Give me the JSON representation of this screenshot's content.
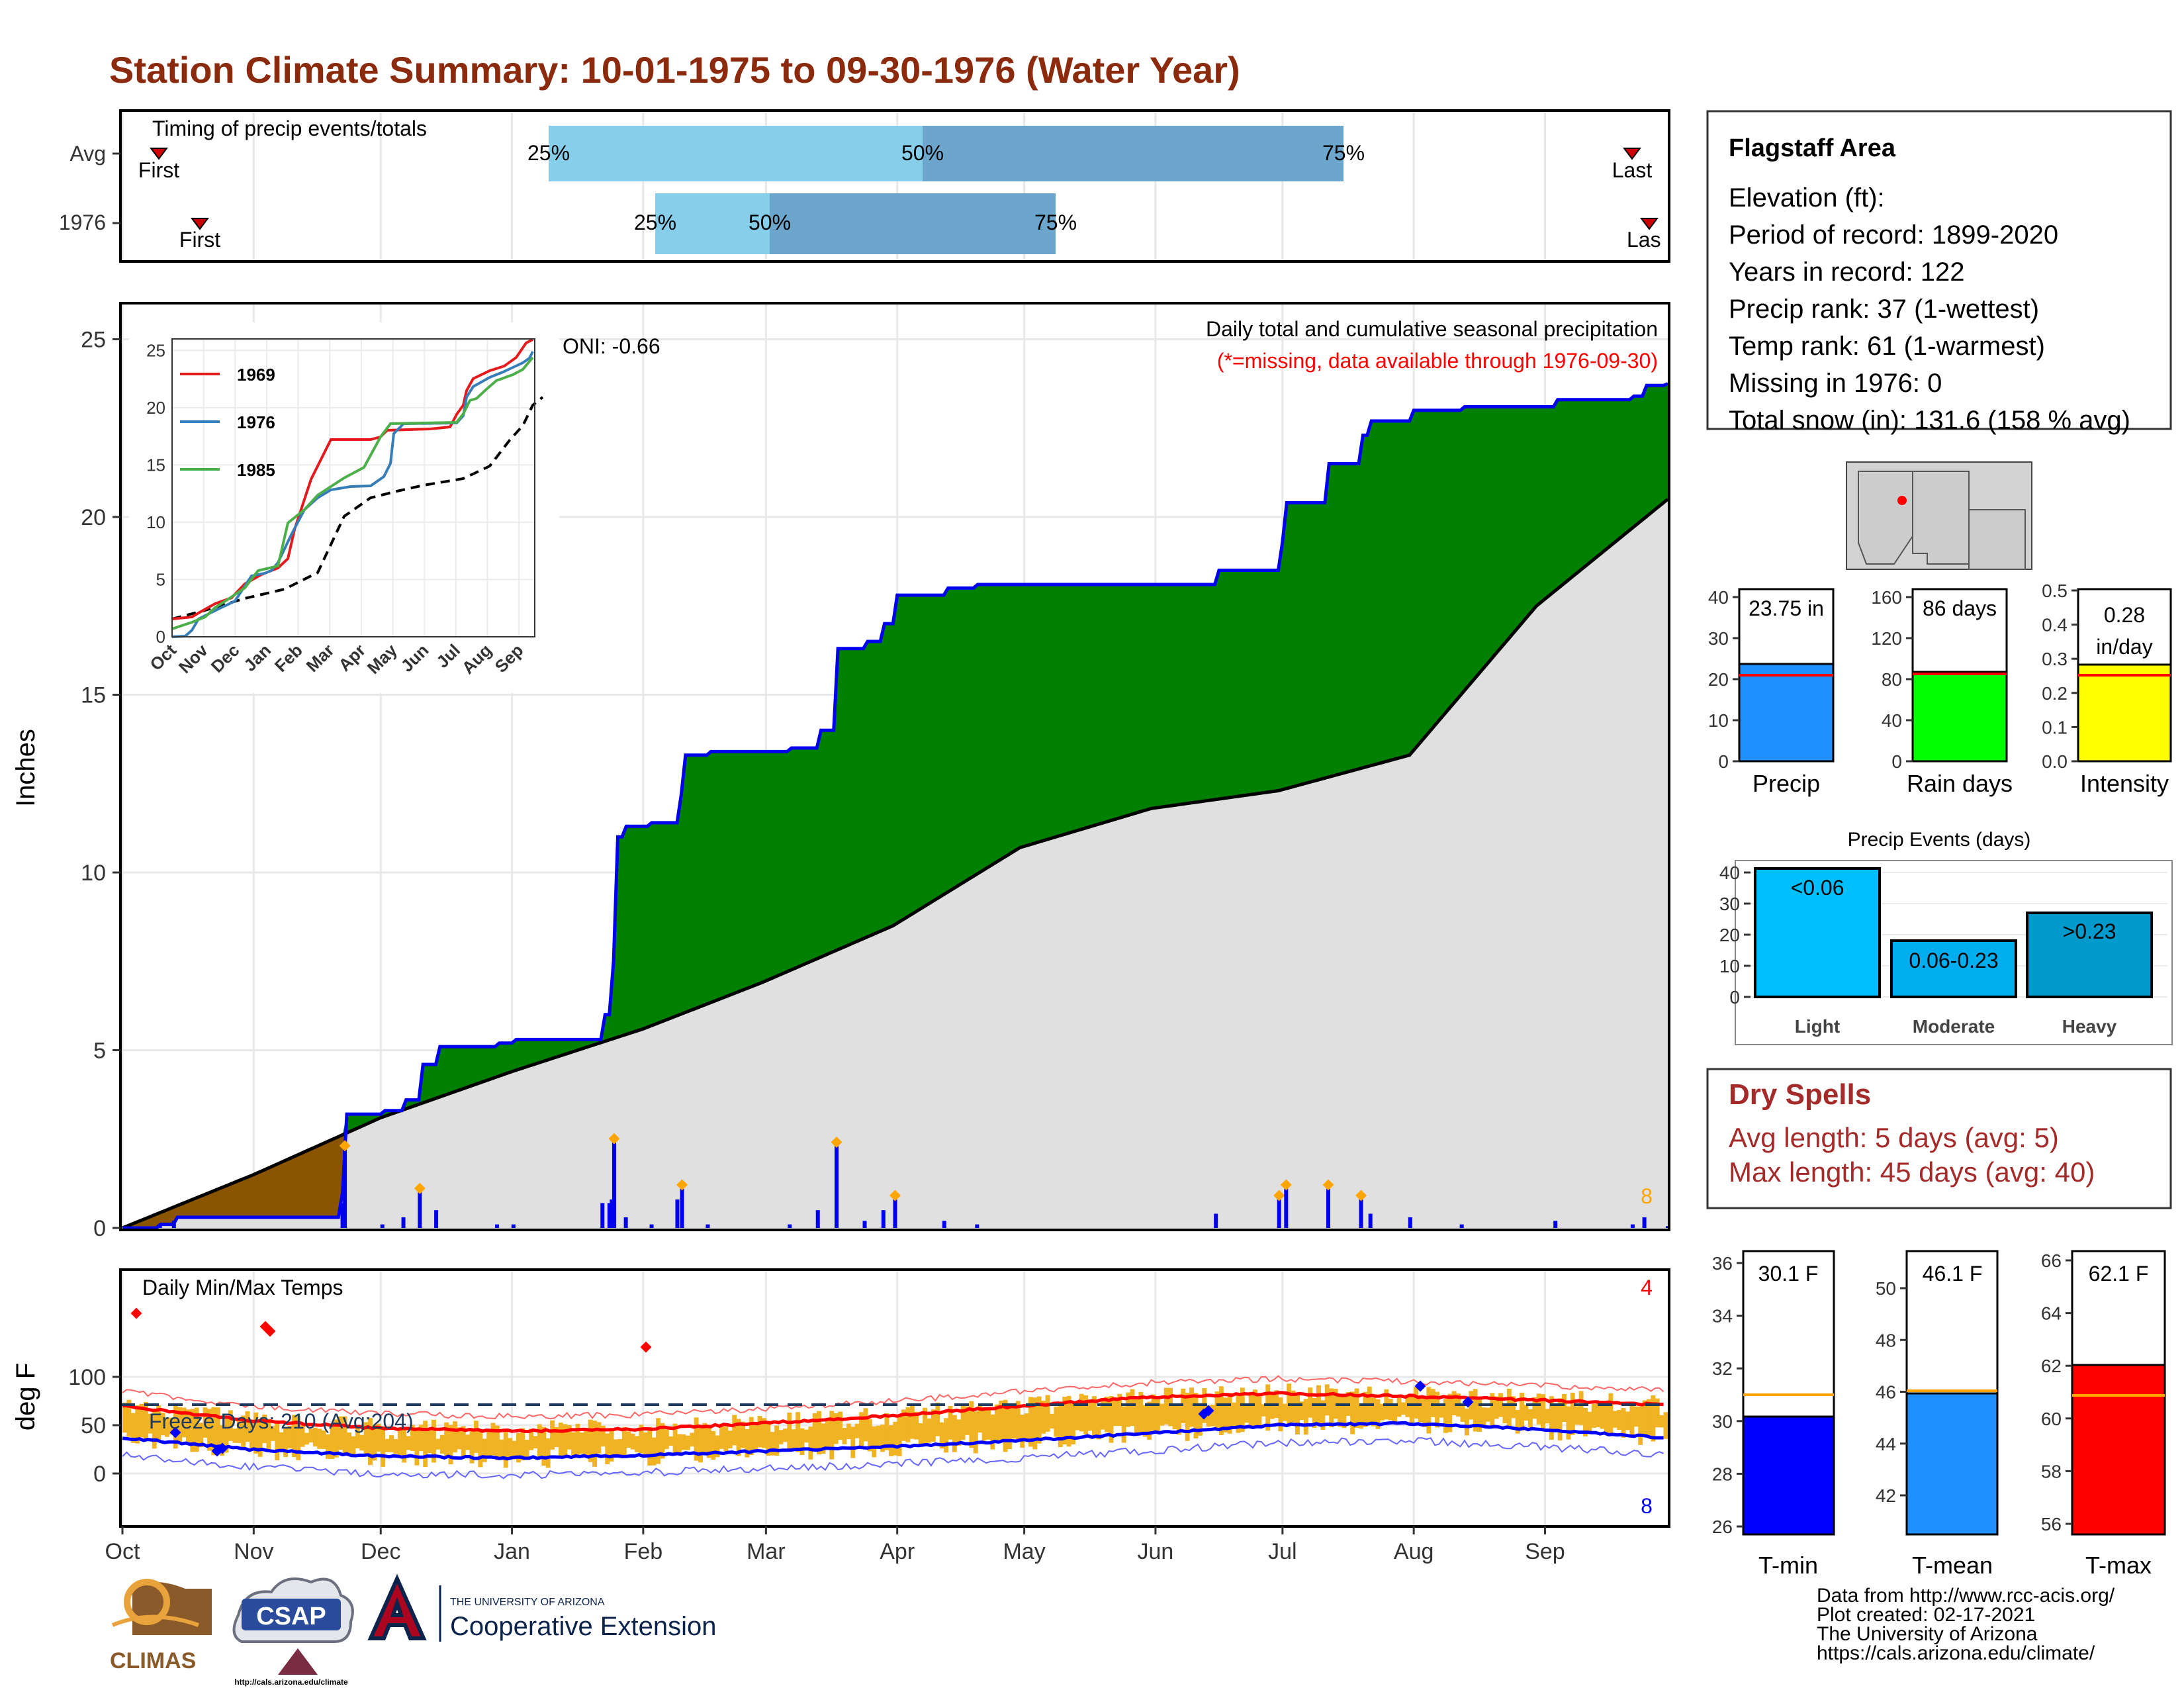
{
  "title": "Station Climate Summary: 10-01-1975 to 09-30-1976 (Water Year)",
  "colors": {
    "title": "#8B2A0C",
    "green": "#008000",
    "brown": "#8B5500",
    "avg_fill": "#E0E0E0",
    "cum_line": "#0000EE",
    "light_blue": "#87CEEB",
    "steel_blue": "#6CA6CD",
    "temp_bar": "#F0B323",
    "tmax": "#FF0000",
    "tmin": "#0000FF",
    "dry": "#A52A2A",
    "inset_1969": "#E41A1C",
    "inset_1976": "#377EB8",
    "inset_1985": "#4DAF4A"
  },
  "timing": {
    "title": "Timing of precip events/totals",
    "rows": [
      {
        "label": "Avg",
        "first_label": "First",
        "last_label": "Last",
        "q25": "25%",
        "q50": "50%",
        "q75": "75%"
      },
      {
        "label": "1976",
        "first_label": "First",
        "last_label": "Las",
        "q25": "25%",
        "q50": "50%",
        "q75": "75%"
      }
    ]
  },
  "precip_panel": {
    "ylabel": "Inches",
    "subtitle": "Daily total and cumulative seasonal precipitation",
    "missing_note": "(*=missing, data available through 1976-09-30)",
    "oni": "ONI: -0.66",
    "corner_count": "8",
    "yticks": [
      "0",
      "5",
      "10",
      "15",
      "20",
      "25"
    ]
  },
  "inset": {
    "yticks": [
      "0",
      "5",
      "10",
      "15",
      "20",
      "25"
    ],
    "xticks": [
      "Oct",
      "Nov",
      "Dec",
      "Jan",
      "Feb",
      "Mar",
      "Apr",
      "May",
      "Jun",
      "Jul",
      "Aug",
      "Sep"
    ],
    "legend": [
      "1969",
      "1976",
      "1985"
    ]
  },
  "temp_panel": {
    "ylabel": "deg F",
    "title": "Daily Min/Max Temps",
    "freeze": "Freeze Days: 210 (Avg:204)",
    "count_hi": "4",
    "count_lo": "8",
    "yticks": [
      "0",
      "50",
      "100"
    ]
  },
  "months": [
    "Oct",
    "Nov",
    "Dec",
    "Jan",
    "Feb",
    "Mar",
    "Apr",
    "May",
    "Jun",
    "Jul",
    "Aug",
    "Sep"
  ],
  "info": {
    "station": "Flagstaff Area",
    "lines": [
      "Elevation (ft):",
      "Period of record: 1899-2020",
      "Years in record: 122",
      "Precip rank: 37 (1-wettest)",
      "Temp rank: 61 (1-warmest)",
      "Missing in 1976: 0",
      "Total snow (in): 131.6 (158 % avg)"
    ]
  },
  "mini_bars": {
    "precip": {
      "label": "Precip",
      "value_text": "23.75 in",
      "yticks": [
        "0",
        "10",
        "20",
        "30",
        "40"
      ]
    },
    "rain": {
      "label": "Rain days",
      "value_text": "86 days",
      "yticks": [
        "0",
        "40",
        "80",
        "120",
        "160"
      ]
    },
    "intensity": {
      "label": "Intensity",
      "value_text_1": "0.28",
      "value_text_2": "in/day",
      "yticks": [
        "0.0",
        "0.1",
        "0.2",
        "0.3",
        "0.4",
        "0.5"
      ]
    }
  },
  "events": {
    "title": "Precip Events (days)",
    "yticks": [
      "0",
      "10",
      "20",
      "30",
      "40"
    ],
    "bars": [
      {
        "category": "Light",
        "label": "<0.06"
      },
      {
        "category": "Moderate",
        "label": "0.06-0.23"
      },
      {
        "category": "Heavy",
        "label": ">0.23"
      }
    ]
  },
  "dry_spells": {
    "title": "Dry Spells",
    "avg": "Avg length: 5 days (avg: 5)",
    "max": "Max length: 45 days (avg: 40)"
  },
  "temp_bars": {
    "tmin": {
      "label": "T-min",
      "value_text": "30.1 F",
      "yticks": [
        "26",
        "28",
        "30",
        "32",
        "34",
        "36"
      ]
    },
    "tmean": {
      "label": "T-mean",
      "value_text": "46.1 F",
      "yticks": [
        "42",
        "44",
        "46",
        "48",
        "50"
      ]
    },
    "tmax": {
      "label": "T-max",
      "value_text": "62.1 F",
      "yticks": [
        "56",
        "58",
        "60",
        "62",
        "64",
        "66"
      ]
    }
  },
  "footer": {
    "lines": [
      "Data from http://www.rcc-acis.org/",
      "Plot created: 02-17-2021",
      "The University of Arizona",
      "https://cals.arizona.edu/climate/"
    ],
    "logos": {
      "climas": "CLIMAS",
      "csap": "CSAP",
      "csap_url": "http://cals.arizona.edu/climate",
      "ua_small": "THE UNIVERSITY OF ARIZONA",
      "ua_big": "Cooperative Extension"
    }
  },
  "chart_data": [
    {
      "type": "bar",
      "title": "Timing of precip events/totals",
      "categories": [
        "Avg",
        "1976"
      ],
      "series": [
        {
          "name": "25%",
          "values": [
            "01-11",
            "02-01"
          ]
        },
        {
          "name": "50%",
          "values": [
            "03-11",
            "02-28"
          ]
        },
        {
          "name": "75%",
          "values": [
            "06-29",
            "04-07"
          ]
        }
      ],
      "markers": {
        "First": [
          "10-09",
          "10-20"
        ],
        "Last": [
          "09-24",
          "09-29"
        ]
      }
    },
    {
      "type": "area",
      "title": "Daily total and cumulative seasonal precipitation",
      "ylabel": "Inches",
      "ylim": [
        0,
        26
      ],
      "total_in": 23.75,
      "cumulative_1976": [
        [
          0,
          0
        ],
        [
          16,
          0.1
        ],
        [
          22,
          0.3
        ],
        [
          60,
          0.3
        ],
        [
          92,
          0.3
        ],
        [
          94,
          1.0
        ],
        [
          95,
          3.2
        ],
        [
          100,
          3.2
        ],
        [
          111,
          3.3
        ],
        [
          120,
          3.6
        ],
        [
          127,
          4.6
        ],
        [
          134,
          5.1
        ],
        [
          160,
          5.2
        ],
        [
          167,
          5.3
        ],
        [
          180,
          5.3
        ],
        [
          205,
          6.0
        ],
        [
          208,
          6.7
        ],
        [
          209,
          7.5
        ],
        [
          210,
          11.0
        ],
        [
          215,
          11.3
        ],
        [
          226,
          11.4
        ],
        [
          237,
          12.2
        ],
        [
          239,
          13.3
        ],
        [
          250,
          13.4
        ],
        [
          285,
          13.5
        ],
        [
          297,
          14.0
        ],
        [
          305,
          16.3
        ],
        [
          317,
          16.5
        ],
        [
          325,
          17.0
        ],
        [
          330,
          17.8
        ],
        [
          351,
          18.0
        ],
        [
          365,
          18.1
        ],
        [
          420,
          18.1
        ],
        [
          467,
          18.5
        ],
        [
          494,
          19.3
        ],
        [
          497,
          20.4
        ],
        [
          515,
          21.5
        ],
        [
          529,
          22.3
        ],
        [
          533,
          22.7
        ],
        [
          550,
          23.0
        ],
        [
          572,
          23.1
        ],
        [
          612,
          23.3
        ],
        [
          640,
          23.3
        ],
        [
          645,
          23.4
        ],
        [
          650,
          23.7
        ],
        [
          660,
          23.75
        ]
      ],
      "average_cumulative": [
        [
          0,
          0
        ],
        [
          31,
          1.5
        ],
        [
          61,
          3.1
        ],
        [
          92,
          4.4
        ],
        [
          123,
          5.6
        ],
        [
          151,
          6.9
        ],
        [
          182,
          8.5
        ],
        [
          212,
          10.7
        ],
        [
          243,
          11.8
        ],
        [
          273,
          12.3
        ],
        [
          304,
          13.3
        ],
        [
          334,
          17.5
        ],
        [
          365,
          20.5
        ]
      ]
    },
    {
      "type": "line",
      "title": "Cumulative precipitation comparison",
      "series": [
        {
          "name": "1969",
          "end_value": 25.0
        },
        {
          "name": "1976",
          "end_value": 23.75
        },
        {
          "name": "1985",
          "end_value": 24.0
        }
      ],
      "ylim": [
        0,
        25
      ]
    },
    {
      "type": "bar",
      "title": "Daily Min/Max Temps",
      "ylabel": "deg F",
      "ylim": [
        -40,
        100
      ],
      "avg_tmax": [
        [
          0,
          70
        ],
        [
          30,
          55
        ],
        [
          60,
          47
        ],
        [
          92,
          44
        ],
        [
          123,
          46
        ],
        [
          151,
          52
        ],
        [
          182,
          60
        ],
        [
          212,
          70
        ],
        [
          243,
          79
        ],
        [
          273,
          83
        ],
        [
          304,
          80
        ],
        [
          334,
          76
        ],
        [
          365,
          71
        ]
      ],
      "avg_tmin": [
        [
          0,
          37
        ],
        [
          30,
          25
        ],
        [
          60,
          18
        ],
        [
          92,
          16
        ],
        [
          123,
          19
        ],
        [
          151,
          23
        ],
        [
          182,
          28
        ],
        [
          212,
          34
        ],
        [
          243,
          42
        ],
        [
          273,
          50
        ],
        [
          304,
          52
        ],
        [
          334,
          46
        ],
        [
          365,
          37
        ]
      ],
      "freeze_line": 32
    },
    {
      "type": "bar",
      "categories": [
        "Precip",
        "Rain days",
        "Intensity"
      ],
      "values": [
        23.75,
        86,
        0.28
      ],
      "averages": [
        21,
        84,
        0.26
      ]
    },
    {
      "type": "bar",
      "title": "Precip Events (days)",
      "categories": [
        "Light",
        "Moderate",
        "Heavy"
      ],
      "values": [
        41,
        18,
        27
      ],
      "ylim": [
        0,
        40
      ]
    },
    {
      "type": "bar",
      "categories": [
        "T-min",
        "T-mean",
        "T-max"
      ],
      "values": [
        30.1,
        46.1,
        62.1
      ],
      "averages": [
        31.1,
        46.2,
        61.0
      ]
    }
  ]
}
